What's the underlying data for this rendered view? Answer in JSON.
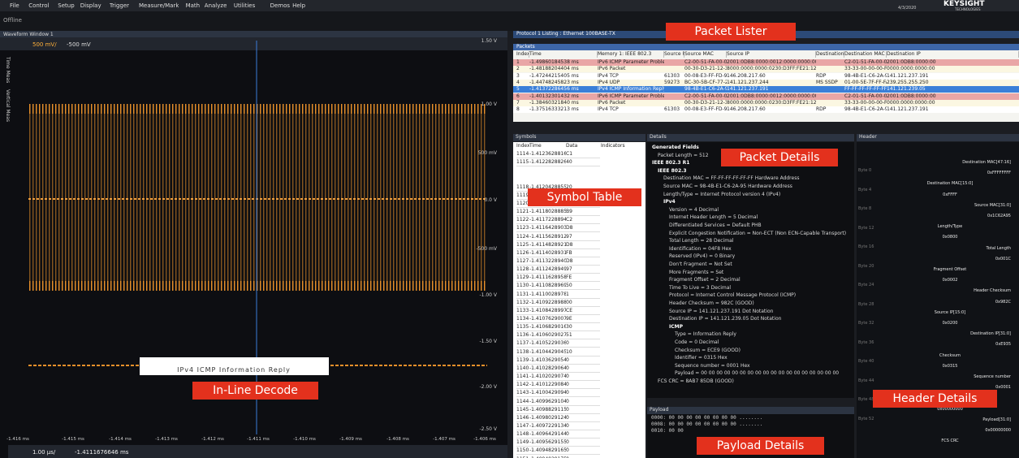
{
  "menu": {
    "items": [
      "File",
      "Control",
      "Setup",
      "Display",
      "Trigger",
      "Measure/Mark",
      "Math",
      "Analyze",
      "Utilities",
      "Demos",
      "Help"
    ],
    "brand": "KEYSIGHT",
    "brand_sub": "TECHNOLOGIES",
    "date": "4/3/2020"
  },
  "status": {
    "mode": "Offline"
  },
  "waveform": {
    "title": "Waveform Window 1",
    "scale": "500 mV/",
    "offset": "-500 mV",
    "side_tabs": [
      "Time Meas",
      "Vertical Meas"
    ],
    "y_labels": [
      "1.50 V",
      "1.00 V",
      "500 mV",
      "0.0 V",
      "-500 mV",
      "-1.00 V",
      "-1.50 V",
      "-2.00 V",
      "-2.50 V"
    ],
    "x_labels": [
      "-1.416 ms",
      "-1.415 ms",
      "-1.414 ms",
      "-1.413 ms",
      "-1.412 ms",
      "-1.411 ms",
      "-1.410 ms",
      "-1.409 ms",
      "-1.408 ms",
      "-1.407 ms",
      "-1.406 ms"
    ],
    "decode": "IPv4  ICMP  Information  Reply",
    "timebase": "1.00 µs/",
    "position": "-1.4111676646 ms"
  },
  "callouts": {
    "packet_lister": "Packet Lister",
    "symbol_table": "Symbol Table",
    "packet_details": "Packet Details",
    "inline_decode": "In-Line Decode",
    "header_details": "Header Details",
    "payload_details": "Payload Details"
  },
  "packets": {
    "title": "Protocol 1 Listing : Ethernet 100BASE-TX",
    "subtitle": "Packets",
    "columns": [
      "Index",
      "Time",
      "Memory 1: IEEE 802.3",
      "Source Port",
      "Source MAC",
      "Source IP",
      "Destination Port",
      "Destination MAC",
      "Destination IP"
    ],
    "rows": [
      [
        "1",
        "-1.49860184538 ms",
        "IPv6 ICMP Parameter Problem",
        "",
        "C2-00-51-FA-00-00",
        "2001:0DB8:0000:0012:0000:0000:0001",
        "",
        "C2-01-51-FA-00-00",
        "2001:0DB8:0000:00"
      ],
      [
        "2",
        "-1.48188204404 ms",
        "IPv6 Packet",
        "",
        "00-30-D3-21-12-3D",
        "8000:0000:0000:0230:D3FF:FE21:123D:FF02",
        "",
        "33-33-00-00-00-FB",
        "0000:0000:0000:00"
      ],
      [
        "3",
        "-1.47244215405 ms",
        "IPv4 TCP",
        "61303",
        "00-08-E3-FF-FD-90",
        "146.208.217.60",
        "RDP",
        "98-4B-E1-C6-2A-95",
        "141.121.237.191"
      ],
      [
        "4",
        "-1.44748245823 ms",
        "IPv4 UDP",
        "59273",
        "BC-30-5B-CF-77-27",
        "141.121.237.244",
        "MS SSDP",
        "01-00-5E-7F-FF-FA",
        "239.255.255.250"
      ],
      [
        "5",
        "-1.41372286456 ms",
        "IPv4 ICMP Information Reply",
        "",
        "98-4B-E1-C6-2A-95",
        "141.121.237.191",
        "",
        "FF-FF-FF-FF-FF-FF",
        "141.121.239.05"
      ],
      [
        "6",
        "-1.40132301432 ms",
        "IPv6 ICMP Parameter Problem",
        "",
        "C2-00-51-FA-00-00",
        "2001:0DB8:0000:0012:0000:0000:0001",
        "",
        "C2-01-51-FA-00-00",
        "2001:0DB8:0000:00"
      ],
      [
        "7",
        "-1.38460321840 ms",
        "IPv6 Packet",
        "",
        "00-30-D3-21-12-3D",
        "8000:0000:0000:0230:D3FF:FE21:123D:FF02",
        "",
        "33-33-00-00-00-FB",
        "0000:0000:0000:00"
      ],
      [
        "8",
        "-1.37516333213 ms",
        "IPv4 TCP",
        "61303",
        "00-08-E3-FF-FD-90",
        "146.208.217.60",
        "RDP",
        "98-4B-E1-C6-2A-95",
        "141.121.237.191"
      ]
    ]
  },
  "symbols": {
    "title": "Symbols",
    "columns": [
      "Index",
      "Time",
      "Data",
      "Indicators"
    ],
    "rows": [
      [
        "1114",
        "-1.41236288169 ms",
        "C1"
      ],
      [
        "1115",
        "-1.41228288266 ms",
        "40"
      ],
      [
        "1118",
        "-1.41204288559 ms",
        "20"
      ],
      [
        "1119",
        "-1.41196288660 ms",
        "30"
      ],
      [
        "1120",
        "-1.41188288758 ms",
        "10"
      ],
      [
        "1121",
        "-1.41180288857 ms",
        "B9"
      ],
      [
        "1122",
        "-1.41172288943 ms",
        "C2"
      ],
      [
        "1123",
        "-1.41164289037 ms",
        "D8"
      ],
      [
        "1124",
        "-1.41156289127 ms",
        "97"
      ],
      [
        "1125",
        "-1.41148289218 ms",
        "D8"
      ],
      [
        "1126",
        "-1.41140289319 ms",
        "FB"
      ],
      [
        "1127",
        "-1.41132289407 ms",
        "D8"
      ],
      [
        "1128",
        "-1.41124289495 ms",
        "97"
      ],
      [
        "1129",
        "-1.41116289586 ms",
        "FE"
      ],
      [
        "1130",
        "-1.41108289696 ms",
        "50"
      ],
      [
        "1131",
        "-1.41100289788 ms",
        "1"
      ],
      [
        "1132",
        "-1.41092289886 ms",
        "00"
      ],
      [
        "1133",
        "-1.41084289978 ms",
        "CE"
      ],
      [
        "1134",
        "-1.41076290076 ms",
        "9E"
      ],
      [
        "1135",
        "-1.41068290169 ms",
        "30"
      ],
      [
        "1136",
        "-1.41060290274 ms",
        "51"
      ],
      [
        "1137",
        "-1.41052290362 ms",
        "0"
      ],
      [
        "1138",
        "-1.41044290455 ms",
        "10"
      ],
      [
        "1139",
        "-1.41036290545 ms",
        "0"
      ],
      [
        "1140",
        "-1.41028290645 ms",
        "0"
      ],
      [
        "1141",
        "-1.41020290744 ms",
        "0"
      ],
      [
        "1142",
        "-1.41012290849 ms",
        "0"
      ],
      [
        "1143",
        "-1.41004290947 ms",
        "0"
      ],
      [
        "1144",
        "-1.40996291048 ms",
        "0"
      ],
      [
        "1145",
        "-1.40988291150 ms",
        "0"
      ],
      [
        "1146",
        "-1.40980291248 ms",
        "0"
      ],
      [
        "1147",
        "-1.40972291347 ms",
        "0"
      ],
      [
        "1148",
        "-1.40964291449 ms",
        "0"
      ],
      [
        "1149",
        "-1.40956291552 ms",
        "0"
      ],
      [
        "1150",
        "-1.40948291651 ms",
        "0"
      ],
      [
        "1151",
        "-1.40940291753 ms",
        "0"
      ],
      [
        "1152",
        "-1.40932291863 ms",
        "0"
      ]
    ]
  },
  "details": {
    "title": "Details",
    "lines": [
      "Generated Fields",
      "Packet Length = 512",
      "IEEE 802.3 R1",
      "IEEE 802.3",
      "Destination MAC = FF-FF-FF-FF-FF-FF Hardware Address",
      "Source MAC = 98-4B-E1-C6-2A-95 Hardware Address",
      "Length/Type = Internet Protocol version 4 (IPv4)",
      "IPv4",
      "Version = 4 Decimal",
      "Internet Header Length = 5 Decimal",
      "Differentiated Services = Default PHB",
      "Explicit Congestion Notification = Non-ECT (Non ECN-Capable Transport)",
      "Total Length = 28 Decimal",
      "Identification = 04F8 Hex",
      "Reserved (IPv4) = 0 Binary",
      "Don't Fragment = Not Set",
      "More Fragments = Set",
      "Fragment Offset = 2 Decimal",
      "Time To Live = 3 Decimal",
      "Protocol = Internet Control Message Protocol (ICMP)",
      "Header Checksum = 982C (GOOD)",
      "Source IP = 141.121.237.191 Dot Notation",
      "Destination IP = 141.121.239.05 Dot Notation",
      "ICMP",
      "Type = Information Reply",
      "Code = 0 Decimal",
      "Checksum = ECE9 (GOOD)",
      "Identifier = 0315 Hex",
      "Sequence number = 0001 Hex",
      "Payload = 00 00 00 00 00 00 00 00 00 00 00 00 00 00 00 00 00 00",
      "FCS CRC = 8AB7 85DB (GOOD)"
    ]
  },
  "payload": {
    "title": "Payload",
    "lines": [
      "0000:  00 00 00 00 00 00 00 00    ........",
      "0008:  00 00 00 00 00 00 00 00    ........",
      "0010:  00 00"
    ]
  },
  "header": {
    "title": "Header",
    "bytes": [
      "Byte 0",
      "Byte 4",
      "Byte 8",
      "Byte 12",
      "Byte 16",
      "Byte 20",
      "Byte 24",
      "Byte 28",
      "Byte 32",
      "Byte 36",
      "Byte 40",
      "Byte 44",
      "Byte 48",
      "Byte 52"
    ],
    "fields": [
      "Destination MAC[47:16]",
      "0xFFFFFFFF",
      "Destination MAC[15:0]",
      "0xFFFF",
      "Source MAC[31:0]",
      "0x1C62A95",
      "Length/Type",
      "0x0800",
      "Total Length",
      "0x001C",
      "Fragment Offset",
      "0x0002",
      "Header Checksum",
      "0x982C",
      "Source IP[15:0]",
      "0x0200",
      "Destination IP[31:0]",
      "0xE935",
      "Checksum",
      "0x0315",
      "Sequence number",
      "0x0001",
      "Payload[127:96]",
      "0x00000000",
      "Payload[31:0]",
      "0x00000000",
      "FCS CRC"
    ]
  }
}
